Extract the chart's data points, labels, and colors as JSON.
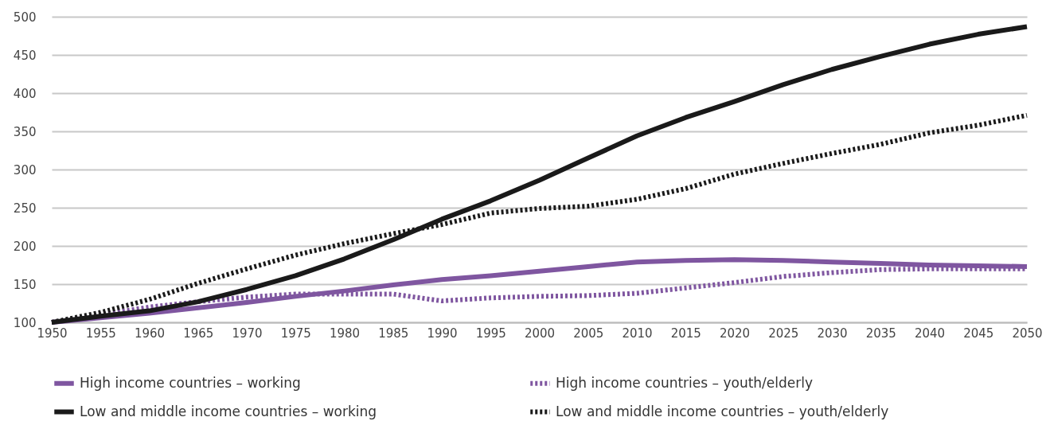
{
  "chart_data": {
    "type": "line",
    "x": [
      1950,
      1955,
      1960,
      1965,
      1970,
      1975,
      1980,
      1985,
      1990,
      1995,
      2000,
      2005,
      2010,
      2015,
      2020,
      2025,
      2030,
      2035,
      2040,
      2045,
      2050
    ],
    "series": [
      {
        "name": "High income countries – working",
        "color": "#7f56a0",
        "line_style": "solid",
        "values": [
          100,
          106,
          112,
          119,
          126,
          134,
          141,
          149,
          156,
          161,
          167,
          173,
          179,
          181,
          182,
          181,
          179,
          177,
          175,
          174,
          173
        ]
      },
      {
        "name": "High income countries – youth/elderly",
        "color": "#7f56a0",
        "line_style": "dotted",
        "values": [
          100,
          110,
          120,
          127,
          133,
          137,
          137,
          137,
          128,
          132,
          134,
          135,
          138,
          145,
          152,
          160,
          165,
          169,
          170,
          170,
          170
        ]
      },
      {
        "name": "Low and middle income countries – working",
        "color": "#1a1a1a",
        "line_style": "solid",
        "values": [
          100,
          108,
          115,
          127,
          143,
          161,
          183,
          208,
          235,
          259,
          286,
          315,
          344,
          368,
          389,
          411,
          431,
          448,
          464,
          477,
          487
        ]
      },
      {
        "name": "Low and middle income countries – youth/elderly",
        "color": "#1a1a1a",
        "line_style": "dotted",
        "values": [
          100,
          113,
          130,
          151,
          170,
          188,
          203,
          216,
          228,
          243,
          249,
          252,
          261,
          275,
          294,
          308,
          321,
          333,
          348,
          358,
          371
        ]
      }
    ],
    "xlim": [
      1950,
      2050
    ],
    "xticks": [
      1950,
      1955,
      1960,
      1965,
      1970,
      1975,
      1980,
      1985,
      1990,
      1995,
      2000,
      2005,
      2010,
      2015,
      2020,
      2025,
      2030,
      2035,
      2040,
      2045,
      2050
    ],
    "ylim": [
      100,
      500
    ],
    "yticks": [
      100,
      150,
      200,
      250,
      300,
      350,
      400,
      450,
      500
    ],
    "grid": "y",
    "legend": "bottom"
  }
}
